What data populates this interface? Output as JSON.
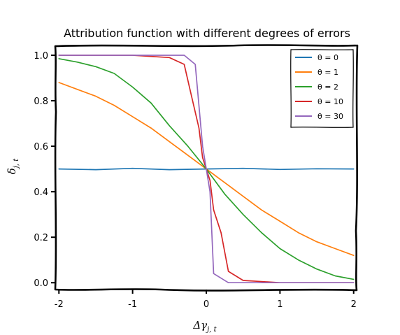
{
  "chart_data": {
    "type": "line",
    "title": "Attribution function with different degrees of errors",
    "xlabel": "Δγ",
    "xlabel_sub": "j, t",
    "ylabel": "δ",
    "ylabel_sub": "j, t",
    "xlim": [
      -2.05,
      2.05
    ],
    "ylim": [
      -0.03,
      1.04
    ],
    "xticks": [
      -2,
      -1,
      0,
      1,
      2
    ],
    "xtick_labels": [
      "-2",
      "-1",
      "0",
      "1",
      "2"
    ],
    "yticks": [
      0.0,
      0.2,
      0.4,
      0.6,
      0.8,
      1.0
    ],
    "ytick_labels": [
      "0.0",
      "0.2",
      "0.4",
      "0.6",
      "0.8",
      "1.0"
    ],
    "grid": false,
    "legend_position": "top-right",
    "series": [
      {
        "name": "θ = 0",
        "color": "#1f77b4",
        "points": [
          [
            -2,
            0.5
          ],
          [
            -1.5,
            0.497
          ],
          [
            -1,
            0.503
          ],
          [
            -0.5,
            0.497
          ],
          [
            0,
            0.5
          ],
          [
            0.5,
            0.503
          ],
          [
            1,
            0.498
          ],
          [
            1.5,
            0.501
          ],
          [
            2,
            0.5
          ]
        ]
      },
      {
        "name": "θ = 1",
        "color": "#ff7f0e",
        "points": [
          [
            -2,
            0.88
          ],
          [
            -1.75,
            0.85
          ],
          [
            -1.5,
            0.82
          ],
          [
            -1.25,
            0.78
          ],
          [
            -1,
            0.73
          ],
          [
            -0.75,
            0.68
          ],
          [
            -0.5,
            0.62
          ],
          [
            -0.25,
            0.56
          ],
          [
            0,
            0.5
          ],
          [
            0.25,
            0.44
          ],
          [
            0.5,
            0.38
          ],
          [
            0.75,
            0.32
          ],
          [
            1,
            0.27
          ],
          [
            1.25,
            0.22
          ],
          [
            1.5,
            0.18
          ],
          [
            1.75,
            0.15
          ],
          [
            2,
            0.12
          ]
        ]
      },
      {
        "name": "θ = 2",
        "color": "#2ca02c",
        "points": [
          [
            -2,
            0.985
          ],
          [
            -1.75,
            0.97
          ],
          [
            -1.5,
            0.95
          ],
          [
            -1.25,
            0.92
          ],
          [
            -1,
            0.86
          ],
          [
            -0.75,
            0.79
          ],
          [
            -0.5,
            0.69
          ],
          [
            -0.25,
            0.6
          ],
          [
            0,
            0.5
          ],
          [
            0.25,
            0.39
          ],
          [
            0.5,
            0.3
          ],
          [
            0.75,
            0.22
          ],
          [
            1,
            0.15
          ],
          [
            1.25,
            0.1
          ],
          [
            1.5,
            0.06
          ],
          [
            1.75,
            0.03
          ],
          [
            2,
            0.015
          ]
        ]
      },
      {
        "name": "θ = 10",
        "color": "#d62728",
        "points": [
          [
            -2,
            1.0
          ],
          [
            -1.5,
            1.0
          ],
          [
            -1,
            1.0
          ],
          [
            -0.5,
            0.99
          ],
          [
            -0.3,
            0.96
          ],
          [
            -0.2,
            0.82
          ],
          [
            -0.1,
            0.68
          ],
          [
            -0.05,
            0.55
          ],
          [
            0,
            0.5
          ],
          [
            0.05,
            0.45
          ],
          [
            0.1,
            0.32
          ],
          [
            0.2,
            0.22
          ],
          [
            0.3,
            0.05
          ],
          [
            0.5,
            0.01
          ],
          [
            1,
            0.0
          ],
          [
            1.5,
            0.0
          ],
          [
            2,
            0.0
          ]
        ]
      },
      {
        "name": "θ = 30",
        "color": "#9467bd",
        "points": [
          [
            -2,
            1.0
          ],
          [
            -1.5,
            1.0
          ],
          [
            -1,
            1.0
          ],
          [
            -0.5,
            1.0
          ],
          [
            -0.3,
            1.0
          ],
          [
            -0.15,
            0.96
          ],
          [
            -0.05,
            0.6
          ],
          [
            0,
            0.5
          ],
          [
            0.05,
            0.4
          ],
          [
            0.1,
            0.04
          ],
          [
            0.3,
            0.0
          ],
          [
            0.8,
            0.0
          ],
          [
            1.5,
            0.0
          ],
          [
            2,
            0.0
          ]
        ]
      }
    ]
  }
}
